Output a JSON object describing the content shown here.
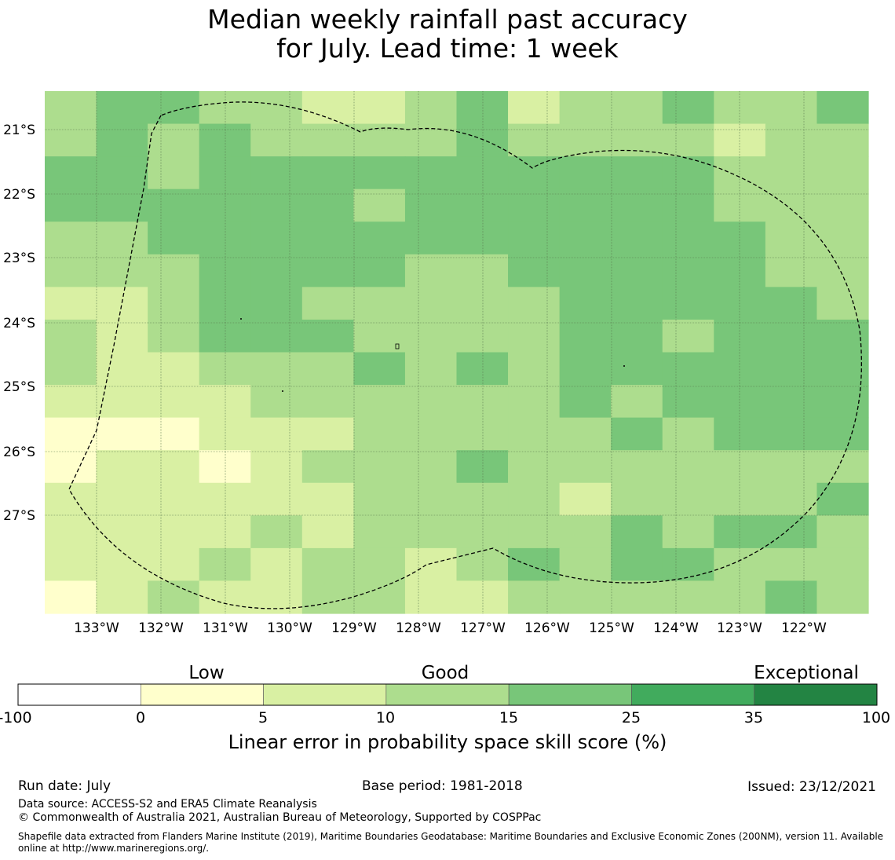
{
  "title": {
    "line1": "Median weekly rainfall past accuracy",
    "line2": "for July. Lead time: 1 week"
  },
  "map": {
    "lon_labels": [
      "133°W",
      "132°W",
      "131°W",
      "130°W",
      "129°W",
      "128°W",
      "127°W",
      "126°W",
      "125°W",
      "124°W",
      "123°W",
      "122°W"
    ],
    "lat_labels": [
      "21°S",
      "22°S",
      "23°S",
      "24°S",
      "25°S",
      "26°S",
      "27°S"
    ],
    "grid_category_rows": [
      [
        3,
        4,
        4,
        3,
        3,
        2,
        2,
        3,
        4,
        2,
        3,
        3,
        4,
        3,
        3,
        4
      ],
      [
        3,
        4,
        3,
        4,
        3,
        3,
        3,
        3,
        4,
        3,
        3,
        3,
        3,
        2,
        3,
        3
      ],
      [
        4,
        4,
        3,
        4,
        4,
        4,
        4,
        4,
        4,
        4,
        4,
        4,
        4,
        3,
        3,
        3
      ],
      [
        4,
        4,
        4,
        4,
        4,
        4,
        3,
        4,
        4,
        4,
        4,
        4,
        4,
        3,
        3,
        3
      ],
      [
        3,
        3,
        4,
        4,
        4,
        4,
        4,
        4,
        4,
        4,
        4,
        4,
        4,
        4,
        3,
        3
      ],
      [
        3,
        3,
        3,
        4,
        4,
        4,
        4,
        3,
        3,
        4,
        4,
        4,
        4,
        4,
        3,
        3
      ],
      [
        2,
        2,
        3,
        4,
        4,
        3,
        3,
        3,
        3,
        3,
        4,
        4,
        4,
        4,
        4,
        3
      ],
      [
        3,
        2,
        3,
        4,
        4,
        4,
        3,
        3,
        3,
        3,
        4,
        4,
        3,
        4,
        4,
        4
      ],
      [
        3,
        2,
        2,
        3,
        3,
        3,
        4,
        3,
        4,
        3,
        4,
        4,
        4,
        4,
        4,
        4
      ],
      [
        2,
        2,
        2,
        2,
        3,
        3,
        3,
        3,
        3,
        3,
        4,
        3,
        4,
        4,
        4,
        4
      ],
      [
        1,
        1,
        1,
        2,
        2,
        2,
        3,
        3,
        3,
        3,
        3,
        4,
        3,
        4,
        4,
        4
      ],
      [
        1,
        2,
        2,
        1,
        2,
        3,
        3,
        3,
        4,
        3,
        3,
        3,
        3,
        3,
        3,
        3
      ],
      [
        2,
        2,
        2,
        2,
        2,
        2,
        3,
        3,
        3,
        3,
        2,
        3,
        3,
        3,
        3,
        4
      ],
      [
        2,
        2,
        2,
        2,
        3,
        2,
        3,
        3,
        3,
        3,
        3,
        4,
        3,
        4,
        4,
        3
      ],
      [
        2,
        2,
        2,
        3,
        2,
        3,
        3,
        2,
        3,
        4,
        3,
        4,
        4,
        3,
        3,
        3
      ],
      [
        1,
        2,
        3,
        2,
        2,
        3,
        3,
        2,
        2,
        3,
        3,
        3,
        3,
        3,
        4,
        3
      ]
    ]
  },
  "colorbar": {
    "colors": [
      "#ffffff",
      "#ffffcc",
      "#d9f0a3",
      "#addd8e",
      "#78c679",
      "#41ab5d",
      "#238443"
    ],
    "ticks": [
      "-100",
      "0",
      "5",
      "10",
      "15",
      "25",
      "35",
      "100"
    ],
    "categories": [
      "Low",
      "Good",
      "Exceptional"
    ],
    "label": "Linear error in probability space skill score (%)"
  },
  "footer": {
    "run_date": "Run date: July",
    "base_period": "Base period: 1981-2018",
    "issued": "Issued: 23/12/2021",
    "data_source": "Data source: ACCESS-S2 and ERA5 Climate Reanalysis",
    "copyright": "© Commonwealth of Australia 2021, Australian Bureau of Meteorology, Supported by COSPPac",
    "shapefile_line1": "Shapefile data extracted from Flanders Marine Institute (2019), Maritime Boundaries Geodatabase: Maritime Boundaries and Exclusive Economic Zones (200NM), version 11. Available",
    "shapefile_line2": "online at http://www.marineregions.org/."
  }
}
